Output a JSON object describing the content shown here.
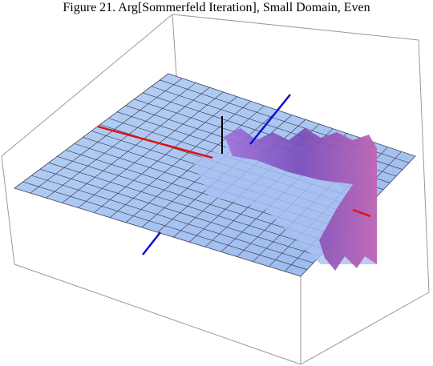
{
  "figure": {
    "title": "Figure 21. Arg[Sommerfeld Iteration], Small Domain, Even"
  }
}
